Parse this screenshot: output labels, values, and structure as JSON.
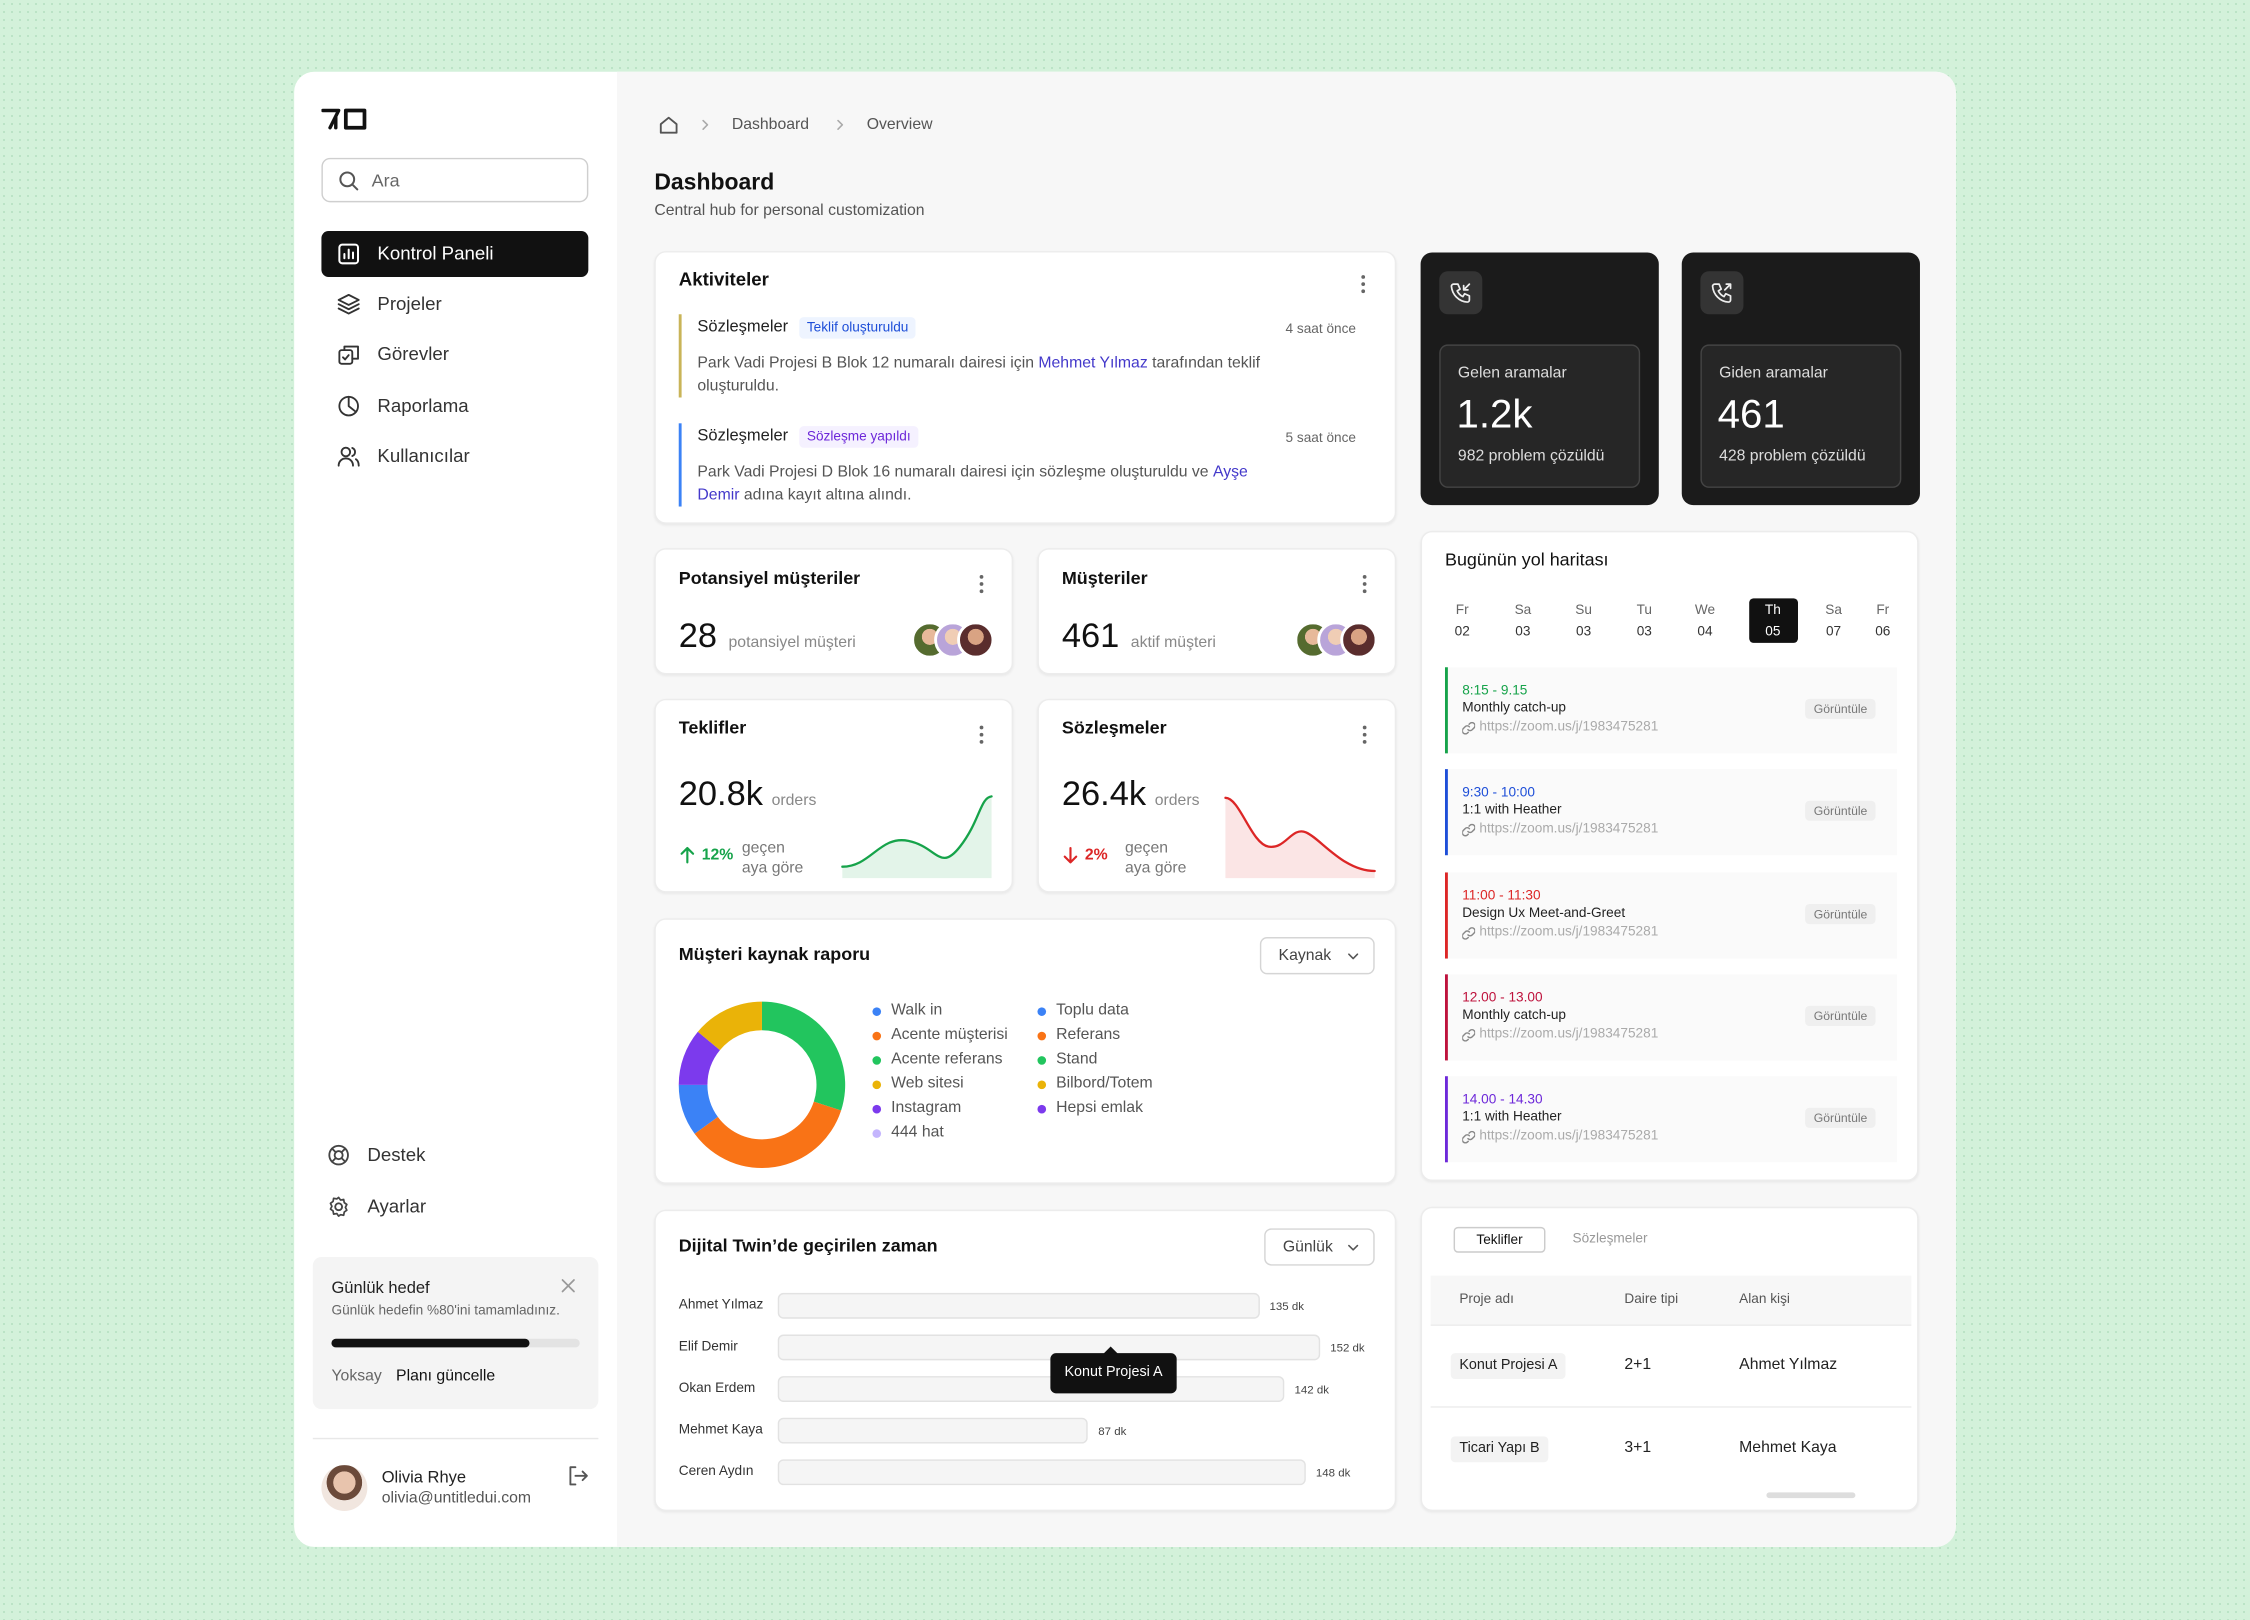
{
  "sidebar": {
    "search_placeholder": "Ara",
    "nav": [
      "Kontrol Paneli",
      "Projeler",
      "Görevler",
      "Raporlama",
      "Kullanıcılar"
    ],
    "active_nav": 0,
    "bottom_nav": [
      "Destek",
      "Ayarlar"
    ],
    "goal": {
      "title": "Günlük hedef",
      "text": "Günlük hedefin %80'ini tamamladınız.",
      "progress": 80,
      "dismiss": "Yoksay",
      "update": "Planı güncelle"
    },
    "user": {
      "name": "Olivia Rhye",
      "email": "olivia@untitledui.com"
    }
  },
  "breadcrumb": [
    "Dashboard",
    "Overview"
  ],
  "header": {
    "title": "Dashboard",
    "subtitle": "Central hub for personal customization"
  },
  "activities": {
    "title": "Aktiviteler",
    "items": [
      {
        "category": "Sözleşmeler",
        "tag": "Teklif oluşturuldu",
        "tag_color": "#1d4ed8",
        "tag_bg": "#eef4ff",
        "time": "4 saat önce",
        "color": "#c9b458",
        "text_before": "Park Vadi Projesi B Blok 12 numaralı dairesi için ",
        "person": "Mehmet Yılmaz",
        "text_after": " tarafından teklif oluşturuldu."
      },
      {
        "category": "Sözleşmeler",
        "tag": "Sözleşme yapıldı",
        "tag_color": "#6d28d9",
        "tag_bg": "#f5f1ff",
        "time": "5 saat önce",
        "color": "#3b82f6",
        "text_before": "Park Vadi Projesi D Blok 16 numaralı dairesi için sözleşme oluşturuldu ve ",
        "person": "Ayşe Demir",
        "text_after": " adına kayıt altına alındı."
      }
    ]
  },
  "calls": [
    {
      "title": "Gelen aramalar",
      "value": "1.2k",
      "note": "982 problem çözüldü"
    },
    {
      "title": "Giden aramalar",
      "value": "461",
      "note": "428 problem çözüldü"
    }
  ],
  "stats": [
    {
      "title": "Potansiyel müşteriler",
      "value": "28",
      "unit": "potansiyel müşteri"
    },
    {
      "title": "Müşteriler",
      "value": "461",
      "unit": "aktif müşteri"
    }
  ],
  "trends": [
    {
      "title": "Teklifler",
      "value": "20.8k",
      "unit": "orders",
      "change": "12%",
      "change_note": "geçen aya göre",
      "direction": "up"
    },
    {
      "title": "Sözleşmeler",
      "value": "26.4k",
      "unit": "orders",
      "change": "2%",
      "change_note": "geçen aya göre",
      "direction": "down"
    }
  ],
  "source_report": {
    "title": "Müşteri kaynak raporu",
    "dropdown": "Kaynak",
    "legend": [
      {
        "name": "Walk in",
        "color": "#3b82f6"
      },
      {
        "name": "Acente müşterisi",
        "color": "#f97316"
      },
      {
        "name": "Acente referans",
        "color": "#22c55e"
      },
      {
        "name": "Web sitesi",
        "color": "#eab308"
      },
      {
        "name": "Instagram",
        "color": "#7c3aed"
      },
      {
        "name": "444 hat",
        "color": "#c4b5fd"
      },
      {
        "name": "Toplu data",
        "color": "#3b82f6"
      },
      {
        "name": "Referans",
        "color": "#f97316"
      },
      {
        "name": "Stand",
        "color": "#22c55e"
      },
      {
        "name": "Bilbord/Totem",
        "color": "#eab308"
      },
      {
        "name": "Hepsi emlak",
        "color": "#7c3aed"
      }
    ],
    "chart": {
      "type": "pie",
      "values": [
        30,
        35,
        10,
        11,
        14
      ],
      "colors": [
        "#22c55e",
        "#f97316",
        "#3b82f6",
        "#7c3aed",
        "#eab308"
      ]
    }
  },
  "time_chart": {
    "type": "bar",
    "title": "Dijital Twin’de geçirilen zaman",
    "dropdown": "Günlük",
    "categories": [
      "Ahmet Yılmaz",
      "Elif Demir",
      "Okan Erdem",
      "Mehmet Kaya",
      "Ceren Aydın"
    ],
    "values": [
      135,
      152,
      142,
      87,
      148
    ],
    "value_labels": [
      "135 dk",
      "152 dk",
      "142 dk",
      "87 dk",
      "148 dk"
    ],
    "color": "#f5f5f5",
    "tooltip": "Konut Projesi A"
  },
  "roadmap": {
    "title": "Bugünün yol haritası",
    "days": [
      {
        "name": "Fr",
        "date": "02"
      },
      {
        "name": "Sa",
        "date": "03"
      },
      {
        "name": "Su",
        "date": "03"
      },
      {
        "name": "Tu",
        "date": "03"
      },
      {
        "name": "We",
        "date": "04"
      },
      {
        "name": "Th",
        "date": "05"
      },
      {
        "name": "Sa",
        "date": "07"
      },
      {
        "name": "Fr",
        "date": "06"
      }
    ],
    "selected_day": 5,
    "view_label": "Görüntüle",
    "events": [
      {
        "time": "8:15 - 9.15",
        "title": "Monthly catch-up",
        "link": "https://zoom.us/j/1983475281",
        "color": "#16a34a"
      },
      {
        "time": "9:30 - 10:00",
        "title": "1:1 with Heather",
        "link": "https://zoom.us/j/1983475281",
        "color": "#1d4ed8"
      },
      {
        "time": "11:00 - 11:30",
        "title": "Design Ux Meet-and-Greet",
        "link": "https://zoom.us/j/1983475281",
        "color": "#dc2626"
      },
      {
        "time": "12.00 - 13.00",
        "title": "Monthly catch-up",
        "link": "https://zoom.us/j/1983475281",
        "color": "#be123c"
      },
      {
        "time": "14.00 - 14.30",
        "title": "1:1 with Heather",
        "link": "https://zoom.us/j/1983475281",
        "color": "#6d28d9"
      }
    ]
  },
  "table": {
    "tabs": [
      "Teklifler",
      "Sözleşmeler"
    ],
    "active_tab": 0,
    "columns": [
      "Proje adı",
      "Daire tipi",
      "Alan kişi"
    ],
    "rows": [
      [
        "Konut Projesi A",
        "2+1",
        "Ahmet Yılmaz"
      ],
      [
        "Ticari Yapı B",
        "3+1",
        "Mehmet Kaya"
      ]
    ]
  }
}
